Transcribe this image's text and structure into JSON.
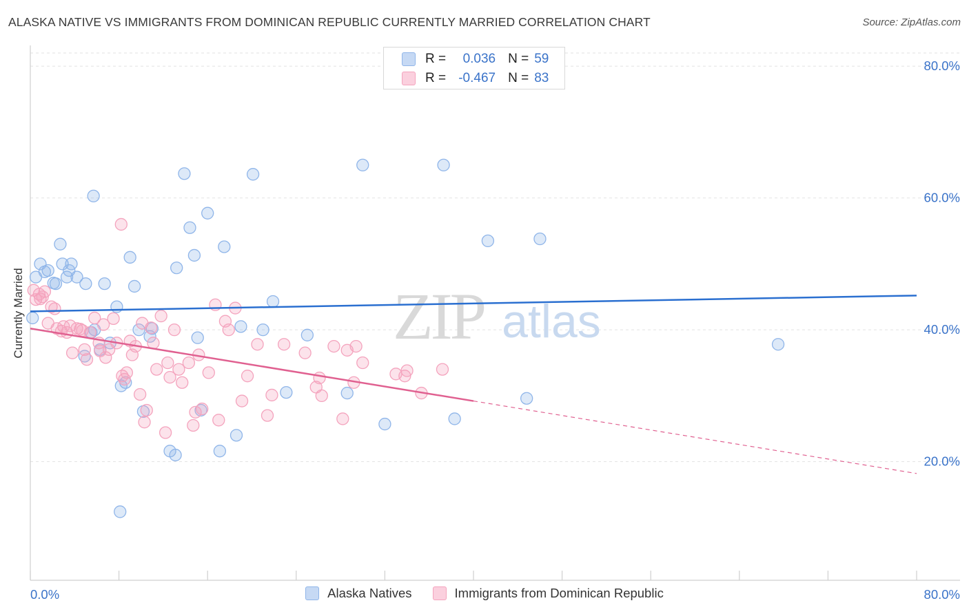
{
  "chart_data": {
    "type": "scatter",
    "title": "ALASKA NATIVE VS IMMIGRANTS FROM DOMINICAN REPUBLIC CURRENTLY MARRIED CORRELATION CHART",
    "source": "Source: ZipAtlas.com",
    "ylabel": "Currently Married",
    "xlabel": "",
    "xlim": [
      0,
      80
    ],
    "ylim": [
      2,
      82
    ],
    "x_tick_labels": [
      "0.0%",
      "80.0%"
    ],
    "y_ticks": [
      20,
      40,
      60,
      80
    ],
    "y_tick_labels": [
      "20.0%",
      "40.0%",
      "60.0%",
      "80.0%"
    ],
    "grid": true,
    "watermark": "ZIPatlas",
    "legend_stats": [
      {
        "r_label": "R =",
        "r_value": "0.036",
        "n_label": "N =",
        "n_value": "59"
      },
      {
        "r_label": "R =",
        "r_value": "-0.467",
        "n_label": "N =",
        "n_value": "83"
      }
    ],
    "series": [
      {
        "name": "Alaska Natives",
        "color": "#8fb5e9",
        "line_color": "#2a6fd0",
        "trend": {
          "x0": 0,
          "y0": 42.8,
          "x1": 80,
          "y1": 45.2
        },
        "points": [
          [
            0.2,
            41.8
          ],
          [
            0.5,
            48
          ],
          [
            0.9,
            50
          ],
          [
            1.3,
            48.8
          ],
          [
            1.6,
            49
          ],
          [
            2.1,
            47.1
          ],
          [
            2.3,
            47
          ],
          [
            2.7,
            53
          ],
          [
            2.9,
            50
          ],
          [
            3.3,
            48
          ],
          [
            3.5,
            49
          ],
          [
            3.7,
            50
          ],
          [
            4.2,
            48
          ],
          [
            5.0,
            47
          ],
          [
            5.5,
            39.6
          ],
          [
            4.9,
            36
          ],
          [
            5.7,
            60.3
          ],
          [
            5.8,
            40
          ],
          [
            6.3,
            37
          ],
          [
            6.7,
            47
          ],
          [
            7.2,
            38
          ],
          [
            7.8,
            43.5
          ],
          [
            8.1,
            12.4
          ],
          [
            8.2,
            31.5
          ],
          [
            8.6,
            32
          ],
          [
            9.0,
            51
          ],
          [
            9.4,
            46.6
          ],
          [
            9.8,
            40
          ],
          [
            10.2,
            27.6
          ],
          [
            10.8,
            39
          ],
          [
            11.0,
            40.2
          ],
          [
            12.6,
            21.6
          ],
          [
            13.1,
            21
          ],
          [
            13.2,
            49.4
          ],
          [
            13.9,
            63.7
          ],
          [
            14.4,
            55.5
          ],
          [
            14.8,
            51.3
          ],
          [
            15.1,
            38.8
          ],
          [
            15.4,
            27.8
          ],
          [
            16.0,
            57.7
          ],
          [
            17.1,
            21.6
          ],
          [
            17.5,
            52.6
          ],
          [
            18.6,
            24
          ],
          [
            19.0,
            40.5
          ],
          [
            20.1,
            63.6
          ],
          [
            21.0,
            40
          ],
          [
            21.9,
            44.3
          ],
          [
            23.1,
            30.5
          ],
          [
            25.0,
            39.2
          ],
          [
            28.6,
            30.4
          ],
          [
            30.0,
            65
          ],
          [
            32.0,
            25.7
          ],
          [
            37.3,
            65
          ],
          [
            38.3,
            26.5
          ],
          [
            41.3,
            53.5
          ],
          [
            44.8,
            29.6
          ],
          [
            46.0,
            53.8
          ],
          [
            67.5,
            37.8
          ]
        ]
      },
      {
        "name": "Immigrants from Dominican Republic",
        "color": "#f4a3bd",
        "line_color": "#e06090",
        "trend": {
          "x0": 0,
          "y0": 40.2,
          "x1": 80,
          "y1": 18.2,
          "solid_until_x": 40
        },
        "points": [
          [
            0.3,
            46
          ],
          [
            0.5,
            44.6
          ],
          [
            0.8,
            45.4
          ],
          [
            0.9,
            44.7
          ],
          [
            1.1,
            45
          ],
          [
            1.3,
            45.8
          ],
          [
            1.6,
            41
          ],
          [
            1.9,
            43.5
          ],
          [
            2.2,
            43.2
          ],
          [
            2.4,
            40.2
          ],
          [
            2.8,
            39.8
          ],
          [
            3.0,
            40.5
          ],
          [
            3.3,
            39.6
          ],
          [
            3.6,
            40.6
          ],
          [
            3.8,
            36.5
          ],
          [
            4.2,
            40.2
          ],
          [
            4.5,
            40.1
          ],
          [
            4.7,
            39.9
          ],
          [
            4.9,
            37
          ],
          [
            5.1,
            35.5
          ],
          [
            5.4,
            39.6
          ],
          [
            5.8,
            41.8
          ],
          [
            6.2,
            38
          ],
          [
            6.3,
            36.8
          ],
          [
            6.6,
            40.8
          ],
          [
            6.8,
            35.8
          ],
          [
            7.1,
            37
          ],
          [
            7.5,
            41.7
          ],
          [
            7.8,
            38
          ],
          [
            8.2,
            56
          ],
          [
            8.3,
            33
          ],
          [
            8.5,
            32.5
          ],
          [
            8.7,
            33.5
          ],
          [
            9.0,
            38.3
          ],
          [
            9.2,
            36.2
          ],
          [
            9.5,
            37.5
          ],
          [
            9.9,
            30.2
          ],
          [
            10.1,
            41
          ],
          [
            10.3,
            26
          ],
          [
            10.5,
            27.8
          ],
          [
            10.9,
            40.3
          ],
          [
            11.1,
            38
          ],
          [
            11.4,
            34
          ],
          [
            11.8,
            42.1
          ],
          [
            12.2,
            24.4
          ],
          [
            12.4,
            35
          ],
          [
            12.6,
            32.8
          ],
          [
            13.0,
            40
          ],
          [
            13.4,
            34
          ],
          [
            13.7,
            32
          ],
          [
            14.3,
            35
          ],
          [
            14.7,
            25.5
          ],
          [
            14.9,
            27.5
          ],
          [
            15.2,
            36.2
          ],
          [
            15.5,
            28
          ],
          [
            16.1,
            33.5
          ],
          [
            16.7,
            43.8
          ],
          [
            17.0,
            26.3
          ],
          [
            17.6,
            41.3
          ],
          [
            17.9,
            40
          ],
          [
            18.5,
            43.3
          ],
          [
            19.1,
            29.2
          ],
          [
            19.6,
            33
          ],
          [
            20.5,
            37.8
          ],
          [
            21.4,
            27
          ],
          [
            21.8,
            30.1
          ],
          [
            22.9,
            37.8
          ],
          [
            24.8,
            36.5
          ],
          [
            25.8,
            31.3
          ],
          [
            26.1,
            32.7
          ],
          [
            26.3,
            30
          ],
          [
            27.4,
            37.5
          ],
          [
            28.2,
            26.5
          ],
          [
            28.6,
            36.9
          ],
          [
            29.2,
            32
          ],
          [
            29.4,
            37.5
          ],
          [
            30.0,
            35
          ],
          [
            33.0,
            33.3
          ],
          [
            33.8,
            33
          ],
          [
            34.0,
            33.8
          ],
          [
            35.3,
            30.4
          ],
          [
            37.2,
            34
          ]
        ]
      }
    ]
  }
}
